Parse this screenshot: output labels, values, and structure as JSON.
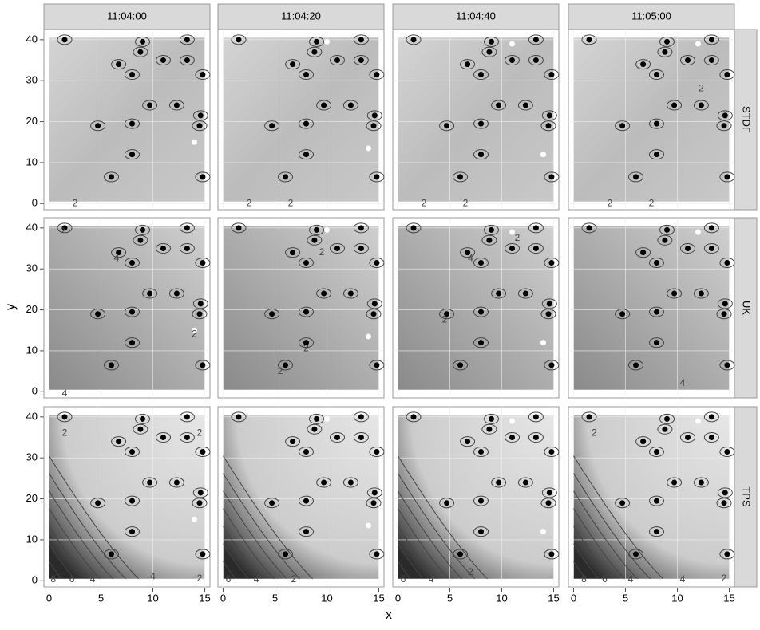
{
  "chart_data": {
    "type": "contour",
    "x_label": "x",
    "y_label": "y",
    "columns": [
      "11:04:00",
      "11:04:20",
      "11:04:40",
      "11:05:00"
    ],
    "rows": [
      "STDF",
      "UK",
      "TPS"
    ],
    "xlim": [
      -0.5,
      15.5
    ],
    "ylim": [
      -1.5,
      42.5
    ],
    "xticks": [
      0,
      5,
      10,
      15
    ],
    "yticks": [
      0,
      10,
      20,
      30,
      40
    ],
    "grid": true,
    "points": {
      "color": "#000000",
      "x": [
        1.5,
        9,
        13.3,
        8.8,
        11,
        13.3,
        6.7,
        8,
        14.8,
        9.7,
        12.3,
        14.6,
        4.7,
        8,
        14.5,
        8,
        6,
        14.8
      ],
      "y": [
        40,
        39.5,
        40,
        37,
        35,
        35,
        34,
        31.5,
        31.5,
        24,
        24,
        21.5,
        19,
        19.5,
        19,
        12,
        6.5,
        6.5
      ]
    },
    "moving_points": {
      "color": "#ffffff",
      "series": [
        {
          "x": [
            14
          ],
          "y": [
            15
          ]
        },
        {
          "x": [
            10,
            14
          ],
          "y": [
            39.5,
            13.5
          ]
        },
        {
          "x": [
            11,
            14
          ],
          "y": [
            39,
            12
          ]
        },
        {
          "x": [
            12
          ],
          "y": [
            39
          ]
        }
      ]
    },
    "panels": [
      [
        {
          "labels": [
            {
              "level": 2,
              "x": 2.5,
              "y": 0
            }
          ]
        },
        {
          "labels": [
            {
              "level": 2,
              "x": 2.5,
              "y": 0
            },
            {
              "level": 2,
              "x": 6.5,
              "y": 0
            }
          ]
        },
        {
          "labels": [
            {
              "level": 2,
              "x": 2.5,
              "y": 0
            },
            {
              "level": 2,
              "x": 6.5,
              "y": 0
            }
          ]
        },
        {
          "labels": [
            {
              "level": 2,
              "x": 12.3,
              "y": 28
            },
            {
              "level": 2,
              "x": 3.5,
              "y": 0
            },
            {
              "level": 2,
              "x": 7.5,
              "y": 0
            }
          ]
        }
      ],
      [
        {
          "labels": [
            {
              "level": 2,
              "x": 1.3,
              "y": 39
            },
            {
              "level": 4,
              "x": 6.5,
              "y": 32.5
            },
            {
              "level": 2,
              "x": 14,
              "y": 14
            },
            {
              "level": 4,
              "x": 1.5,
              "y": -0.5
            }
          ]
        },
        {
          "labels": [
            {
              "level": 2,
              "x": 9.5,
              "y": 34
            },
            {
              "level": 2,
              "x": 8,
              "y": 10.5
            },
            {
              "level": 2,
              "x": 5.5,
              "y": 5
            }
          ]
        },
        {
          "labels": [
            {
              "level": 2,
              "x": 11.5,
              "y": 37.5
            },
            {
              "level": 4,
              "x": 7,
              "y": 32.5
            },
            {
              "level": 2,
              "x": 4.5,
              "y": 17.5
            }
          ]
        },
        {
          "labels": [
            {
              "level": 4,
              "x": 10.5,
              "y": 2
            }
          ]
        }
      ],
      [
        {
          "labels": [
            {
              "level": 2,
              "x": 1.5,
              "y": 36
            },
            {
              "level": 2,
              "x": 14.5,
              "y": 36
            },
            {
              "level": 8,
              "x": 0.4,
              "y": 0.3
            },
            {
              "level": 6,
              "x": 2.2,
              "y": 0.3
            },
            {
              "level": 4,
              "x": 4.2,
              "y": 0.3
            },
            {
              "level": 4,
              "x": 10,
              "y": 1
            },
            {
              "level": 2,
              "x": 14.5,
              "y": 0.5
            }
          ]
        },
        {
          "labels": [
            {
              "level": 6,
              "x": 0.5,
              "y": 0.3
            },
            {
              "level": 4,
              "x": 3.2,
              "y": 0.3
            },
            {
              "level": 2,
              "x": 6.8,
              "y": 0.3
            }
          ]
        },
        {
          "labels": [
            {
              "level": 6,
              "x": 0.5,
              "y": 0.3
            },
            {
              "level": 4,
              "x": 3.2,
              "y": 0.3
            },
            {
              "level": 2,
              "x": 7,
              "y": 2
            }
          ]
        },
        {
          "labels": [
            {
              "level": 2,
              "x": 2,
              "y": 36
            },
            {
              "level": 8,
              "x": 1,
              "y": 0.3
            },
            {
              "level": 6,
              "x": 3,
              "y": 0.3
            },
            {
              "level": 4,
              "x": 5.5,
              "y": 0.3
            },
            {
              "level": 4,
              "x": 10.5,
              "y": 0.3
            },
            {
              "level": 2,
              "x": 14.5,
              "y": 0.5
            }
          ]
        }
      ]
    ]
  }
}
